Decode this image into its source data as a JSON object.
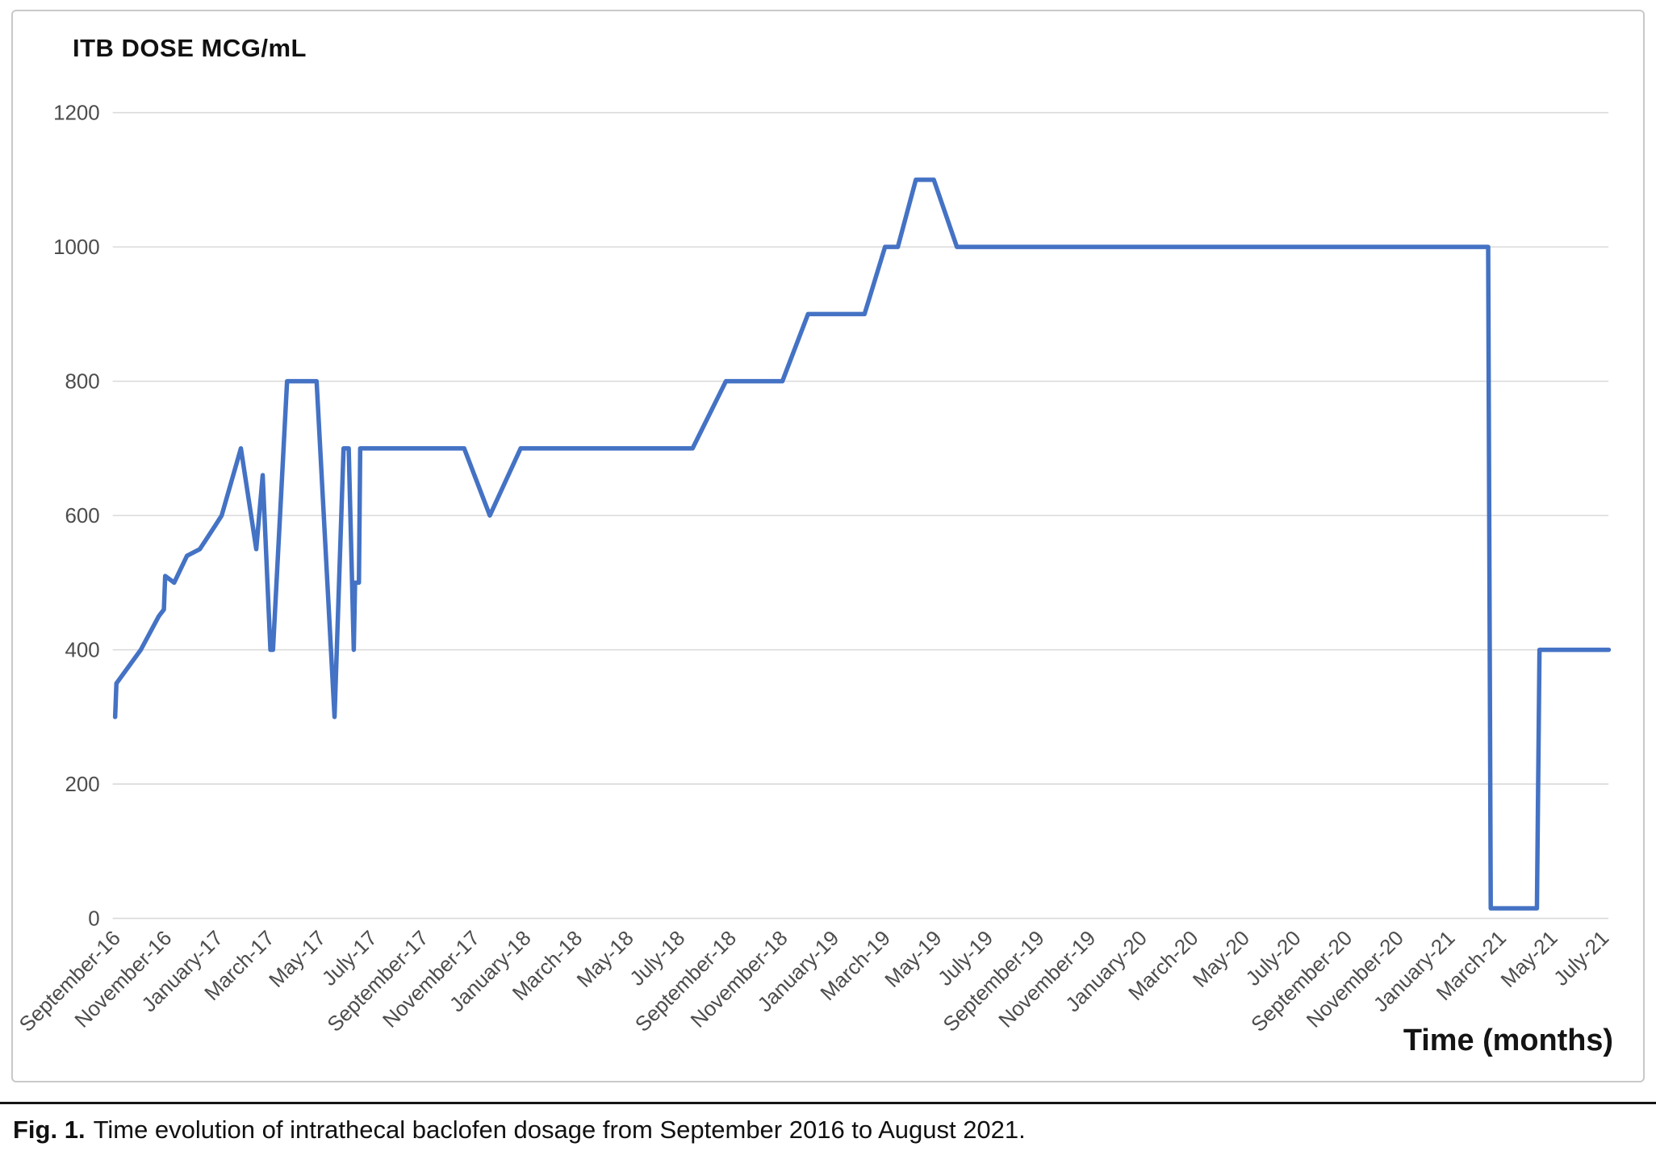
{
  "caption": {
    "label": "Fig. 1.",
    "text": "Time evolution of intrathecal baclofen dosage from September 2016 to August 2021."
  },
  "chart_data": {
    "type": "line",
    "title": "ITB DOSE MCG/mL",
    "xlabel": "Time (months)",
    "ylabel": "",
    "ylim": [
      0,
      1200
    ],
    "yticks": [
      0,
      200,
      400,
      600,
      800,
      1000,
      1200
    ],
    "grid": "horizontal",
    "legend": "none",
    "line_color": "#4472C4",
    "grid_color": "#D9D9D9",
    "tick_label_color": "#4d4d4d",
    "x_unit": "months since September 2016",
    "x_tick_step_months": 2,
    "x_tick_labels": [
      "September-16",
      "November-16",
      "January-17",
      "March-17",
      "May-17",
      "July-17",
      "September-17",
      "November-17",
      "January-18",
      "March-18",
      "May-18",
      "July-18",
      "September-18",
      "November-18",
      "January-19",
      "March-19",
      "May-19",
      "July-19",
      "September-19",
      "November-19",
      "January-20",
      "March-20",
      "May-20",
      "July-20",
      "September-20",
      "November-20",
      "January-21",
      "March-21",
      "May-21",
      "July-21"
    ],
    "series": [
      {
        "name": "ITB dose (mcg/mL)",
        "points": [
          [
            0,
            300
          ],
          [
            0.05,
            350
          ],
          [
            1.0,
            400
          ],
          [
            1.7,
            450
          ],
          [
            1.9,
            460
          ],
          [
            1.95,
            510
          ],
          [
            2.3,
            500
          ],
          [
            2.8,
            540
          ],
          [
            3.3,
            550
          ],
          [
            3.9,
            585
          ],
          [
            4.15,
            600
          ],
          [
            4.9,
            700
          ],
          [
            5.5,
            550
          ],
          [
            5.75,
            660
          ],
          [
            6.05,
            400
          ],
          [
            6.15,
            400
          ],
          [
            6.7,
            800
          ],
          [
            7.85,
            800
          ],
          [
            8.55,
            300
          ],
          [
            8.9,
            700
          ],
          [
            9.1,
            700
          ],
          [
            9.3,
            400
          ],
          [
            9.35,
            500
          ],
          [
            9.5,
            500
          ],
          [
            9.55,
            700
          ],
          [
            13.6,
            700
          ],
          [
            14.6,
            600
          ],
          [
            15.8,
            700
          ],
          [
            22.5,
            700
          ],
          [
            23.8,
            800
          ],
          [
            26.0,
            800
          ],
          [
            27.0,
            900
          ],
          [
            29.2,
            900
          ],
          [
            30.0,
            1000
          ],
          [
            30.5,
            1000
          ],
          [
            31.2,
            1100
          ],
          [
            31.9,
            1100
          ],
          [
            32.8,
            1000
          ],
          [
            53.5,
            1000
          ],
          [
            53.6,
            15
          ],
          [
            55.4,
            15
          ],
          [
            55.5,
            400
          ],
          [
            58.2,
            400
          ]
        ]
      }
    ]
  }
}
